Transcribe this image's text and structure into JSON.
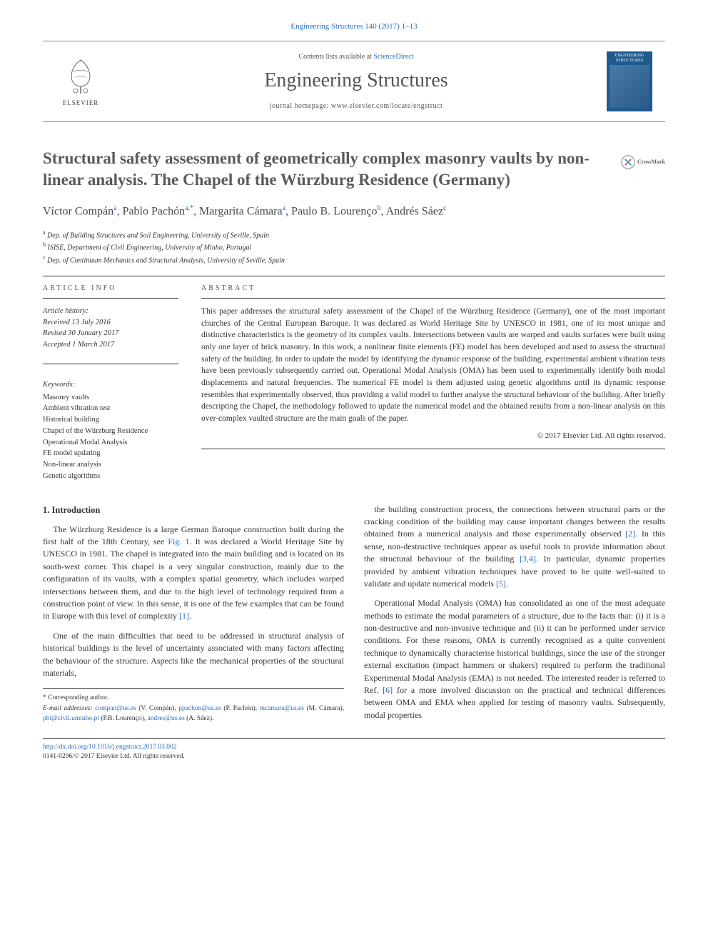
{
  "journal_ref": {
    "journal": "Engineering Structures",
    "citation": "140 (2017) 1–13",
    "color": "#2a6ebb"
  },
  "header": {
    "contents_prefix": "Contents lists available at ",
    "contents_link": "ScienceDirect",
    "journal_name": "Engineering Structures",
    "homepage_prefix": "journal homepage: ",
    "homepage_url": "www.elsevier.com/locate/engstruct",
    "elsevier_label": "ELSEVIER",
    "cover_label": "ENGINEERING STRUCTURES"
  },
  "crossmark_label": "CrossMark",
  "title": "Structural safety assessment of geometrically complex masonry vaults by non-linear analysis. The Chapel of the Würzburg Residence (Germany)",
  "authors": [
    {
      "name": "Víctor Compán",
      "aff": "a"
    },
    {
      "name": "Pablo Pachón",
      "aff": "a,*"
    },
    {
      "name": "Margarita Cámara",
      "aff": "a"
    },
    {
      "name": "Paulo B. Lourenço",
      "aff": "b"
    },
    {
      "name": "Andrés Sáez",
      "aff": "c"
    }
  ],
  "affiliations": [
    {
      "key": "a",
      "text": "Dep. of Building Structures and Soil Engineering, University of Seville, Spain"
    },
    {
      "key": "b",
      "text": "ISISE, Department of Civil Engineering, University of Minho, Portugal"
    },
    {
      "key": "c",
      "text": "Dep. of Continuum Mechanics and Structural Analysis, University of Seville, Spain"
    }
  ],
  "article_info": {
    "heading": "ARTICLE INFO",
    "history_label": "Article history:",
    "received": "Received 13 July 2016",
    "revised": "Revised 30 January 2017",
    "accepted": "Accepted 1 March 2017",
    "keywords_label": "Keywords:",
    "keywords": [
      "Masonry vaults",
      "Ambient vibration test",
      "Historical building",
      "Chapel of the Würzburg Residence",
      "Operational Modal Analysis",
      "FE model updating",
      "Non-linear analysis",
      "Genetic algorithms"
    ]
  },
  "abstract": {
    "heading": "ABSTRACT",
    "text": "This paper addresses the structural safety assessment of the Chapel of the Würzburg Residence (Germany), one of the most important churches of the Central European Baroque. It was declared as World Heritage Site by UNESCO in 1981, one of its most unique and distinctive characteristics is the geometry of its complex vaults. Intersections between vaults are warped and vaults surfaces were built using only one layer of brick masonry. In this work, a nonlinear finite elements (FE) model has been developed and used to assess the structural safety of the building. In order to update the model by identifying the dynamic response of the building, experimental ambient vibration tests have been previously subsequently carried out. Operational Modal Analysis (OMA) has been used to experimentally identify both modal displacements and natural frequencies. The numerical FE model is them adjusted using genetic algorithms until its dynamic response resembles that experimentally observed, thus providing a valid model to further analyse the structural behaviour of the building. After briefly descripting the Chapel, the methodology followed to update the numerical model and the obtained results from a non-linear analysis on this over-complex vaulted structure are the main goals of the paper.",
    "copyright": "© 2017 Elsevier Ltd. All rights reserved."
  },
  "body": {
    "section_heading": "1. Introduction",
    "p1": "The Würzburg Residence is a large German Baroque construction built during the first half of the 18th Century, see Fig. 1. It was declared a World Heritage Site by UNESCO in 1981. The chapel is integrated into the main building and is located on its south-west corner. This chapel is a very singular construction, mainly due to the configuration of its vaults, with a complex spatial geometry, which includes warped intersections between them, and due to the high level of technology required from a construction point of view. In this sense, it is one of the few examples that can be found in Europe with this level of complexity [1].",
    "p2": "One of the main difficulties that need to be addressed in structural analysis of historical buildings is the level of uncertainty associated with many factors affecting the behaviour of the structure. Aspects like the mechanical properties of the structural materials,",
    "p3": "the building construction process, the connections between structural parts or the cracking condition of the building may cause important changes between the results obtained from a numerical analysis and those experimentally observed [2]. In this sense, non-destructive techniques appear as useful tools to provide information about the structural behaviour of the building [3,4]. In particular, dynamic properties provided by ambient vibration techniques have proved to be quite well-suited to validate and update numerical models [5].",
    "p4": "Operational Modal Analysis (OMA) has consolidated as one of the most adequate methods to estimate the modal parameters of a structure, due to the facts that: (i) it is a non-destructive and non-invasive technique and (ii) it can be performed under service conditions. For these reasons, OMA is currently recognised as a quite convenient technique to dynamically characterise historical buildings, since the use of the stronger external excitation (impact hammers or shakers) required to perform the traditional Experimental Modal Analysis (EMA) is not needed. The interested reader is referred to Ref. [6] for a more involved discussion on the practical and technical differences between OMA and EMA when applied for testing of masonry vaults. Subsequently, modal properties"
  },
  "footnotes": {
    "corresponding": "* Corresponding author.",
    "emails_label": "E-mail addresses:",
    "emails": [
      {
        "addr": "compan@us.es",
        "who": "(V. Compán)"
      },
      {
        "addr": "ppachon@us.es",
        "who": "(P. Pachón)"
      },
      {
        "addr": "mcamara@us.es",
        "who": "(M. Cámara)"
      },
      {
        "addr": "pbl@civil.uminho.pt",
        "who": "(P.B. Lourenço)"
      },
      {
        "addr": "andres@us.es",
        "who": "(A. Sáez)"
      }
    ]
  },
  "bottom": {
    "doi": "http://dx.doi.org/10.1016/j.engstruct.2017.03.002",
    "issn_line": "0141-0296/© 2017 Elsevier Ltd. All rights reserved."
  },
  "colors": {
    "link": "#2a6ebb",
    "text": "#333333",
    "heading_grey": "#5a5a5a"
  }
}
